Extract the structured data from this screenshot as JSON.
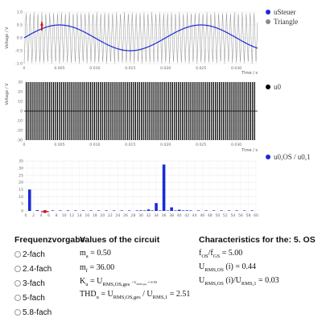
{
  "plot1": {
    "ylabel": "Voltage / V",
    "xlabel": "Time / s",
    "xticks": [
      "0",
      "0.005",
      "0.010",
      "0.015",
      "0.020",
      "0.025",
      "0.030"
    ],
    "yticks": [
      "1.0",
      "0.5",
      "0.0",
      "-0.5",
      "-1.0"
    ],
    "legend": [
      {
        "label": "uSteuer",
        "color": "#1a2bd6"
      },
      {
        "label": "Triangle",
        "color": "#8a8a8a"
      }
    ]
  },
  "plot2": {
    "ylabel": "Voltage / V",
    "xlabel": "Time / s",
    "xticks": [
      "0",
      "0.005",
      "0.010",
      "0.015",
      "0.020",
      "0.025",
      "0.030"
    ],
    "yticks": [
      "30",
      "20",
      "10",
      "0",
      "-10",
      "-20",
      "-30"
    ],
    "legend": [
      {
        "label": "u0",
        "color": "#000000"
      }
    ]
  },
  "plot3": {
    "yticks": [
      "35",
      "30",
      "25",
      "20",
      "15",
      "10",
      "5",
      "0"
    ],
    "xticks": [
      "0",
      "2",
      "4",
      "6",
      "8",
      "10",
      "12",
      "14",
      "16",
      "18",
      "20",
      "22",
      "24",
      "26",
      "28",
      "30",
      "32",
      "34",
      "36",
      "38",
      "40",
      "42",
      "44",
      "46",
      "48",
      "50",
      "52",
      "54",
      "56",
      "58",
      "60"
    ],
    "legend": [
      {
        "label": "u0,OS / u0,1",
        "color": "#1a2bd6"
      }
    ]
  },
  "chart_data": [
    {
      "type": "line",
      "xlim": [
        0,
        0.033
      ],
      "ylim": [
        -1,
        1
      ],
      "series": [
        {
          "name": "uSteuer",
          "kind": "sine",
          "amplitude": 0.5,
          "frequency_hz": 50
        },
        {
          "name": "Triangle",
          "kind": "triangle",
          "amplitude": 1.0,
          "frequency_hz": 1800
        }
      ]
    },
    {
      "type": "line",
      "xlim": [
        0,
        0.033
      ],
      "ylim": [
        -30,
        30
      ],
      "series": [
        {
          "name": "u0",
          "kind": "pwm",
          "amplitude": 30
        }
      ]
    },
    {
      "type": "bar",
      "xlim": [
        0,
        60
      ],
      "ylim": [
        0,
        35
      ],
      "series": [
        {
          "name": "u0,OS / u0,1",
          "x": [
            1,
            34,
            36,
            38,
            3,
            5,
            30,
            32,
            40,
            42
          ],
          "y": [
            15,
            5.5,
            32.5,
            2.5,
            0.5,
            0.5,
            0.4,
            1.0,
            0.8,
            0.4
          ]
        }
      ]
    }
  ],
  "freq": {
    "title": "Frequenzvorgabe",
    "options": [
      "2-fach",
      "2.4-fach",
      "3-fach",
      "5-fach",
      "5.8-fach"
    ]
  },
  "values": {
    "title": "Values of the circuit",
    "ma": "0.50",
    "mf": "36.00",
    "ku_small": "0.93",
    "thd": "2.51"
  },
  "characteristics": {
    "title": "Characteristics for the: 5. OS",
    "fos_fgs": "5.00",
    "urms_os": "0.44",
    "urms_ratio": "0.03"
  }
}
